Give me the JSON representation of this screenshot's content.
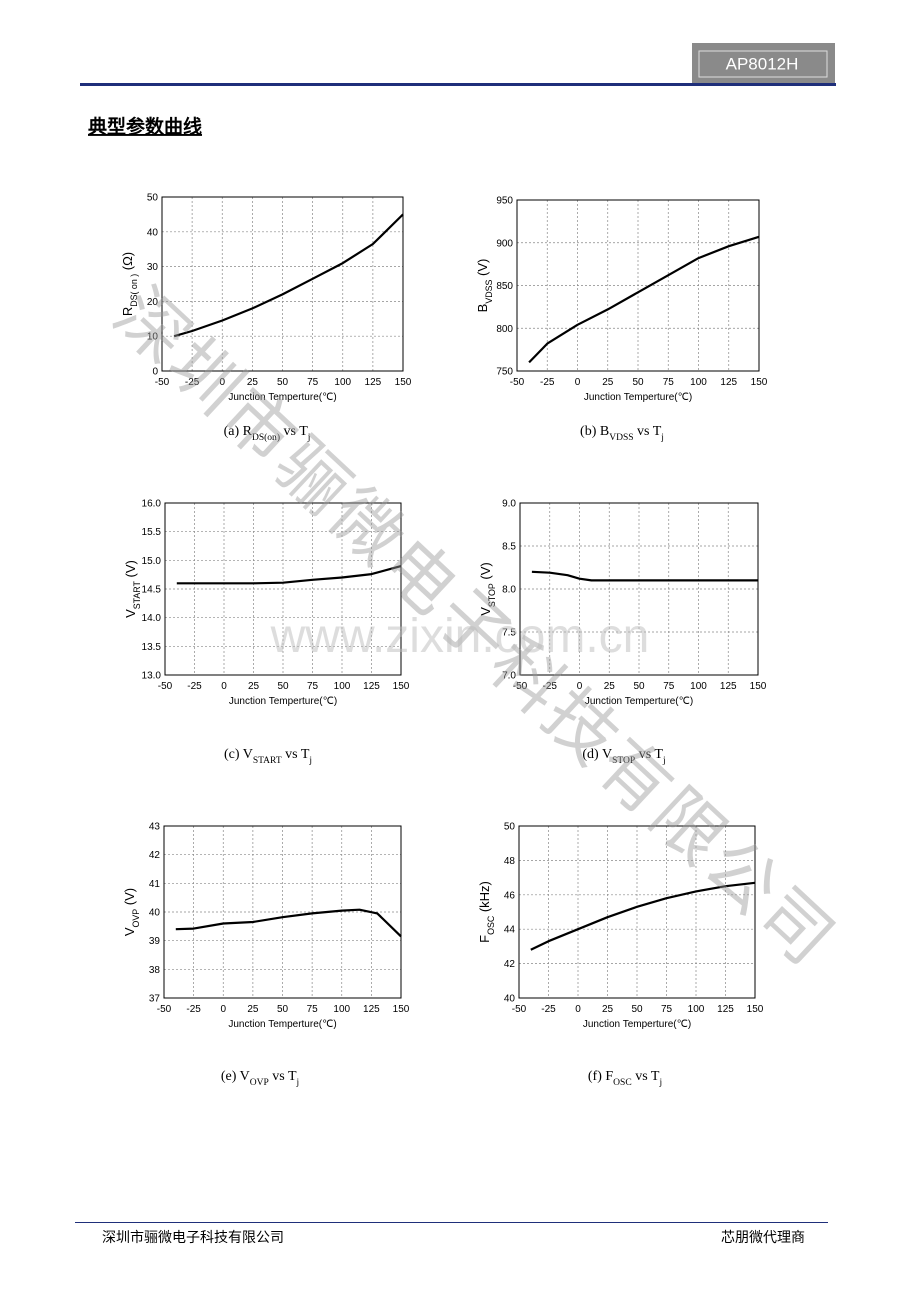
{
  "header": {
    "model": "AP8012H"
  },
  "section_title": "典型参数曲线",
  "watermark": {
    "company": "深圳市骊微电子科技有限公司",
    "url": "www.zixin.com.cn"
  },
  "footer": {
    "left": "深圳市骊微电子科技有限公司",
    "right": "芯朋微代理商"
  },
  "chart_data": [
    {
      "type": "line",
      "x_label": "Junction Temperture(℃)",
      "y_label": [
        {
          "text": "R"
        },
        {
          "sub": "DS( on )"
        },
        {
          "text": " (Ω)"
        }
      ],
      "caption": [
        {
          "text": "(a) R"
        },
        {
          "sub": "DS(on)"
        },
        {
          "text": " vs T"
        },
        {
          "sub": "j"
        }
      ],
      "x": [
        -40,
        -25,
        0,
        25,
        50,
        75,
        100,
        125,
        150
      ],
      "values": [
        10,
        11.5,
        14.5,
        18,
        22,
        26.5,
        31,
        36.5,
        45
      ],
      "xlim": [
        -50,
        150
      ],
      "xticks": [
        -50,
        -25,
        0,
        25,
        50,
        75,
        100,
        125,
        150
      ],
      "ylim": [
        0,
        50
      ],
      "yticks": [
        0,
        10,
        20,
        30,
        40,
        50
      ],
      "grid": true,
      "color": "#000000"
    },
    {
      "type": "line",
      "x_label": "Junction Temperture(℃)",
      "y_label": [
        {
          "text": "B"
        },
        {
          "sub": "VDSS"
        },
        {
          "text": " (V)"
        }
      ],
      "caption": [
        {
          "text": "(b) B"
        },
        {
          "sub": "VDSS"
        },
        {
          "text": " vs T"
        },
        {
          "sub": "j"
        }
      ],
      "x": [
        -40,
        -25,
        0,
        25,
        50,
        75,
        100,
        125,
        150
      ],
      "values": [
        760,
        782,
        804,
        822,
        842,
        862,
        882,
        896,
        907
      ],
      "xlim": [
        -50,
        150
      ],
      "xticks": [
        -50,
        -25,
        0,
        25,
        50,
        75,
        100,
        125,
        150
      ],
      "ylim": [
        750,
        950
      ],
      "yticks": [
        750,
        800,
        850,
        900,
        950
      ],
      "grid": true,
      "color": "#000000"
    },
    {
      "type": "line",
      "x_label": "Junction Temperture(℃)",
      "y_label": [
        {
          "text": "V"
        },
        {
          "sub": "START"
        },
        {
          "text": " (V)"
        }
      ],
      "caption": [
        {
          "text": "(c) V"
        },
        {
          "sub": "START"
        },
        {
          "text": " vs T"
        },
        {
          "sub": "j"
        }
      ],
      "x": [
        -40,
        -25,
        0,
        25,
        50,
        75,
        100,
        125,
        150
      ],
      "values": [
        14.6,
        14.6,
        14.6,
        14.6,
        14.61,
        14.66,
        14.7,
        14.76,
        14.9
      ],
      "xlim": [
        -50,
        150
      ],
      "xticks": [
        -50,
        -25,
        0,
        25,
        50,
        75,
        100,
        125,
        150
      ],
      "ylim": [
        13,
        16
      ],
      "yticks": [
        {
          "value": 13,
          "label": "13.0"
        },
        {
          "value": 13.5,
          "label": "13.5"
        },
        {
          "value": 14,
          "label": "14.0"
        },
        {
          "value": 14.5,
          "label": "14.5"
        },
        {
          "value": 15,
          "label": "15.0"
        },
        {
          "value": 15.5,
          "label": "15.5"
        },
        {
          "value": 16,
          "label": "16.0"
        }
      ],
      "grid": true,
      "color": "#000000"
    },
    {
      "type": "line",
      "x_label": "Junction Temperture(℃)",
      "y_label": [
        {
          "text": "V"
        },
        {
          "sub": "STOP"
        },
        {
          "text": " (V)"
        }
      ],
      "caption": [
        {
          "text": "(d) V"
        },
        {
          "sub": "STOP"
        },
        {
          "text": " vs T"
        },
        {
          "sub": "j"
        }
      ],
      "x": [
        -40,
        -25,
        -10,
        0,
        10,
        25,
        50,
        75,
        100,
        125,
        150
      ],
      "values": [
        8.2,
        8.19,
        8.16,
        8.12,
        8.1,
        8.1,
        8.1,
        8.1,
        8.1,
        8.1,
        8.1
      ],
      "xlim": [
        -50,
        150
      ],
      "xticks": [
        -50,
        -25,
        0,
        25,
        50,
        75,
        100,
        125,
        150
      ],
      "ylim": [
        7,
        9
      ],
      "yticks": [
        {
          "value": 7,
          "label": "7.0"
        },
        {
          "value": 7.5,
          "label": "7.5"
        },
        {
          "value": 8,
          "label": "8.0"
        },
        {
          "value": 8.5,
          "label": "8.5"
        },
        {
          "value": 9,
          "label": "9.0"
        }
      ],
      "grid": true,
      "color": "#000000"
    },
    {
      "type": "line",
      "x_label": "Junction Temperture(℃)",
      "y_label": [
        {
          "text": "V"
        },
        {
          "sub": "OVP"
        },
        {
          "text": " (V)"
        }
      ],
      "caption": [
        {
          "text": "(e) V"
        },
        {
          "sub": "OVP"
        },
        {
          "text": " vs T"
        },
        {
          "sub": "j"
        }
      ],
      "x": [
        -40,
        -25,
        0,
        25,
        50,
        75,
        100,
        115,
        130,
        150
      ],
      "values": [
        39.4,
        39.42,
        39.6,
        39.65,
        39.82,
        39.95,
        40.05,
        40.08,
        39.95,
        39.15
      ],
      "xlim": [
        -50,
        150
      ],
      "xticks": [
        -50,
        -25,
        0,
        25,
        50,
        75,
        100,
        125,
        150
      ],
      "ylim": [
        37,
        43
      ],
      "yticks": [
        37,
        38,
        39,
        40,
        41,
        42,
        43
      ],
      "grid": true,
      "color": "#000000"
    },
    {
      "type": "line",
      "x_label": "Junction Temperture(℃)",
      "y_label": [
        {
          "text": "F"
        },
        {
          "sub": "OSC"
        },
        {
          "text": " (kHz)"
        }
      ],
      "caption": [
        {
          "text": "(f) F"
        },
        {
          "sub": "OSC"
        },
        {
          "text": " vs T"
        },
        {
          "sub": "j"
        }
      ],
      "x": [
        -40,
        -25,
        0,
        25,
        50,
        75,
        100,
        125,
        150
      ],
      "values": [
        42.8,
        43.3,
        44,
        44.7,
        45.3,
        45.8,
        46.2,
        46.5,
        46.7
      ],
      "xlim": [
        -50,
        150
      ],
      "xticks": [
        -50,
        -25,
        0,
        25,
        50,
        75,
        100,
        125,
        150
      ],
      "ylim": [
        40,
        50
      ],
      "yticks": [
        40,
        42,
        44,
        46,
        48,
        50
      ],
      "grid": true,
      "color": "#000000"
    }
  ]
}
